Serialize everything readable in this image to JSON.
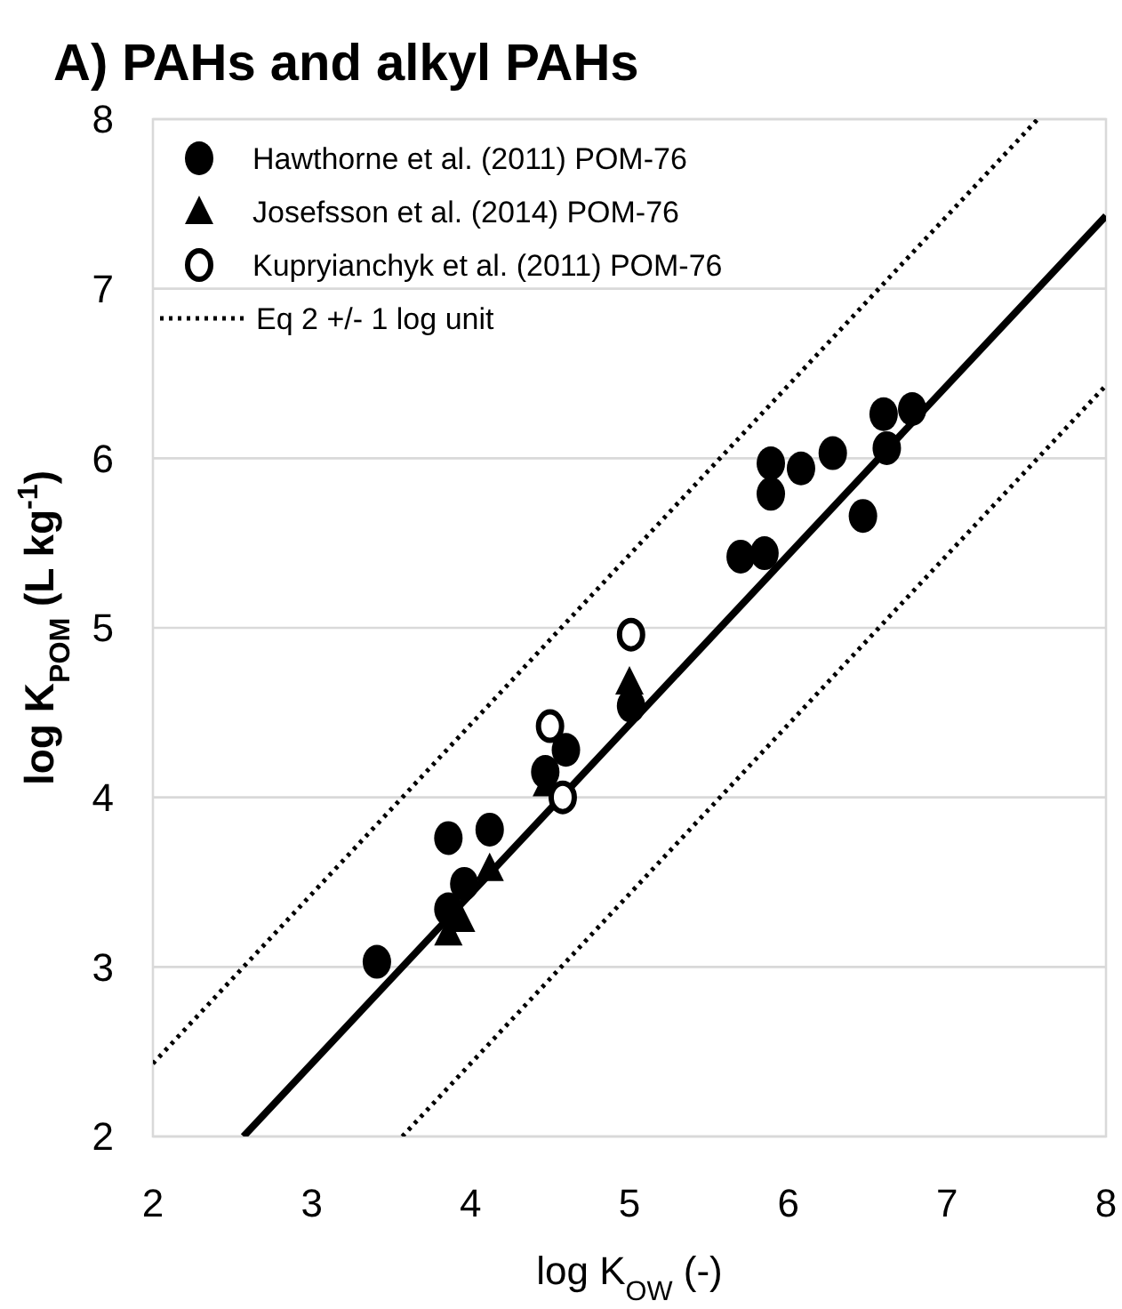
{
  "chart_data": {
    "type": "scatter",
    "title": "A) PAHs and alkyl PAHs",
    "xlabel": "log K$_{OW}$ (-)",
    "ylabel": "log K$_{POM}$ (L kg$^{-1}$)",
    "xlim": [
      2,
      8
    ],
    "ylim": [
      2,
      8
    ],
    "xticks": [
      2,
      3,
      4,
      5,
      6,
      7,
      8
    ],
    "yticks": [
      2,
      3,
      4,
      5,
      6,
      7,
      8
    ],
    "grid": "y",
    "legend": "top left",
    "series": [
      {
        "name": "Hawthorne et al. (2011) POM-76",
        "color": "#000000",
        "marker": "circle",
        "x": [
          3.41,
          3.86,
          4.12,
          3.96,
          3.86,
          4.47,
          4.6,
          5.01,
          5.7,
          5.85,
          5.89,
          5.89,
          6.08,
          6.28,
          6.47,
          6.6,
          6.62,
          6.78
        ],
        "values": [
          3.03,
          3.76,
          3.81,
          3.49,
          3.34,
          4.15,
          4.28,
          4.54,
          5.42,
          5.44,
          5.79,
          5.97,
          5.94,
          6.03,
          5.66,
          6.26,
          6.06,
          6.29
        ]
      },
      {
        "name": "Josefsson et al. (2014) POM-76",
        "color": "#000000",
        "marker": "triangle",
        "x": [
          3.86,
          3.94,
          4.12,
          4.48,
          5.0
        ],
        "values": [
          3.2,
          3.28,
          3.58,
          4.08,
          4.68
        ]
      },
      {
        "name": "Kupryianchyk et al. (2011) POM-76",
        "color": "#ffffff",
        "marker": "circle",
        "x": [
          4.58,
          4.5,
          5.01
        ],
        "values": [
          4.0,
          4.42,
          4.96
        ]
      },
      {
        "name": "Eq 2 +/- 1 log unit",
        "type": "line",
        "color": "#000000",
        "line_style": "dotted",
        "x": [
          2,
          7.57
        ],
        "values": [
          2.43,
          8
        ]
      },
      {
        "type": "line",
        "color": "#000000",
        "line_style": "dotted",
        "x": [
          3.57,
          8
        ],
        "values": [
          2,
          6.43
        ]
      },
      {
        "type": "line",
        "color": "#000000",
        "line_style": "solid",
        "x": [
          2.57,
          8
        ],
        "values": [
          2,
          7.43
        ]
      }
    ]
  }
}
